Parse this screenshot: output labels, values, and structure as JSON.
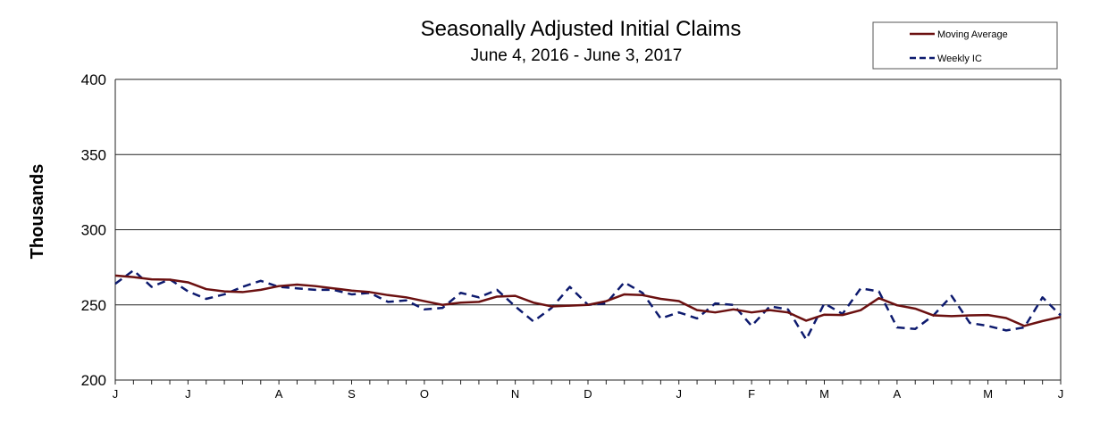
{
  "chart_data": {
    "type": "line",
    "title": "Seasonally Adjusted Initial Claims",
    "subtitle": "June 4, 2016  -  June 3, 2017",
    "y_label": "Thousands",
    "categories": [
      "J",
      null,
      null,
      null,
      "J",
      null,
      null,
      null,
      null,
      "A",
      null,
      null,
      null,
      "S",
      null,
      null,
      null,
      "O",
      null,
      null,
      null,
      null,
      "N",
      null,
      null,
      null,
      "D",
      null,
      null,
      null,
      null,
      "J",
      null,
      null,
      null,
      "F",
      null,
      null,
      null,
      "M",
      null,
      null,
      null,
      "A",
      null,
      null,
      null,
      null,
      "M",
      null,
      null,
      null,
      "J"
    ],
    "series": [
      {
        "name": "Moving Average",
        "color": "#6b1010",
        "line_style": "solid",
        "values": [
          269.5,
          268.5,
          267,
          266.75,
          265,
          260.5,
          259,
          258.5,
          260,
          262.5,
          263.5,
          262.5,
          261,
          259.5,
          258.5,
          256.5,
          255,
          252.5,
          250,
          251.5,
          252,
          255.5,
          256,
          251.5,
          249,
          249.5,
          250,
          252.5,
          257,
          256.5,
          254,
          252.5,
          246.5,
          245,
          247,
          245,
          246.5,
          245,
          239.5,
          243.5,
          243.25,
          246.5,
          254.5,
          249.75,
          247.5,
          243,
          242.5,
          243,
          243.25,
          241.25,
          236,
          239.25,
          242
        ]
      },
      {
        "name": "Weekly IC",
        "color": "#0d1a6e",
        "line_style": "dashed",
        "values": [
          264,
          273,
          262,
          267,
          259,
          254,
          257,
          262,
          266,
          262,
          261,
          260,
          260,
          257,
          258,
          252,
          253,
          247,
          248,
          258,
          255,
          260,
          249,
          239,
          248,
          262,
          250,
          251,
          265,
          258,
          241,
          245,
          241,
          251,
          250,
          236,
          249,
          247,
          227,
          251,
          244,
          261,
          259,
          235,
          234,
          243,
          256,
          238,
          236,
          233,
          235,
          255,
          243
        ]
      }
    ],
    "ylim": [
      200,
      400
    ],
    "yticks": [
      200,
      250,
      300,
      350,
      400
    ],
    "grid": true,
    "legend": "top-right"
  }
}
